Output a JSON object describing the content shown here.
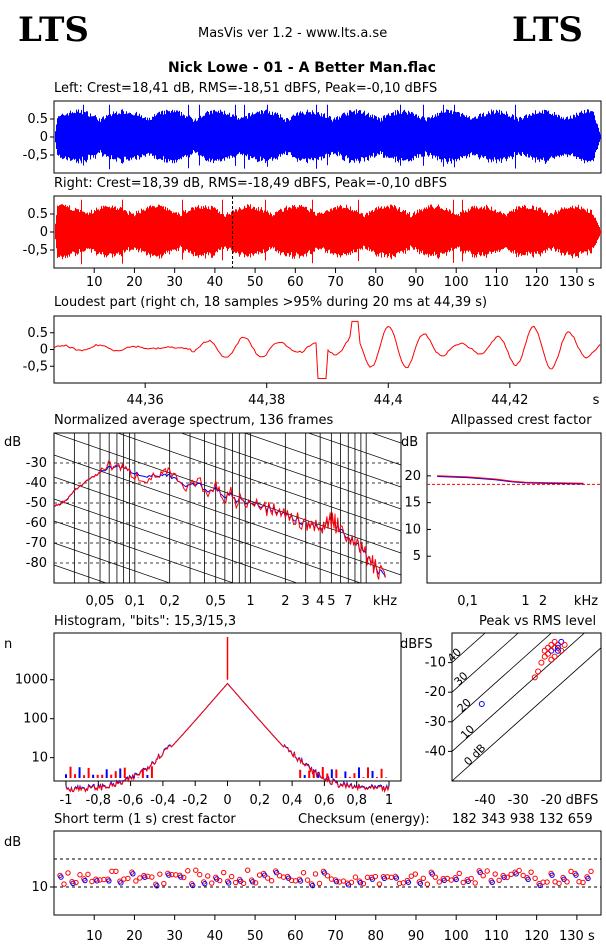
{
  "header": {
    "logo_left": "LTS",
    "logo_right": "LTS",
    "app_title": "MasVis ver 1.2 - www.lts.a.se",
    "file_title": "Nick Lowe - 01 - A Better Man.flac"
  },
  "colors": {
    "left": "#0000ff",
    "right": "#ff0000"
  },
  "chart_data": [
    {
      "id": "left",
      "type": "line",
      "title": "Left: Crest=18,41 dB, RMS=-18,51 dBFS, Peak=-0,10 dBFS",
      "yticks": [
        "0.5",
        "0",
        "-0,5"
      ],
      "ylim": [
        -1,
        1
      ],
      "xlim": [
        0,
        136
      ],
      "color": "#0000ff"
    },
    {
      "id": "right",
      "type": "line",
      "title": "Right: Crest=18,39 dB, RMS=-18,49 dBFS, Peak=-0,10 dBFS",
      "yticks": [
        "0.5",
        "0",
        "-0,5"
      ],
      "ylim": [
        -1,
        1
      ],
      "xlim": [
        0,
        136
      ],
      "xticks": [
        "10",
        "20",
        "30",
        "40",
        "50",
        "60",
        "70",
        "80",
        "90",
        "100",
        "110",
        "120",
        "130 s"
      ],
      "marker_x": 44.39,
      "color": "#ff0000"
    },
    {
      "id": "loudest",
      "type": "line",
      "title": "Loudest part (right ch, 18 samples >95% during 20 ms at 44,39 s)",
      "yticks": [
        "0.5",
        "0",
        "-0,5"
      ],
      "xticks": [
        "44,36",
        "44,38",
        "44,4",
        "44,42",
        "s"
      ],
      "xlim": [
        44.345,
        44.435
      ],
      "ylim": [
        -1,
        1
      ],
      "color": "#ff0000"
    },
    {
      "id": "spectrum",
      "type": "line",
      "title": "Normalized average spectrum, 136 frames",
      "ylabel": "dB",
      "yticks": [
        "-30",
        "-40",
        "-50",
        "-60",
        "-70",
        "-80"
      ],
      "xticks": [
        "0,05",
        "0,1",
        "0,2",
        "0,5",
        "1",
        "2",
        "3",
        "4",
        "5",
        "7",
        "kHz"
      ],
      "ylim": [
        -90,
        -15
      ],
      "points": [
        [
          0.02,
          -52
        ],
        [
          0.025,
          -49
        ],
        [
          0.03,
          -44
        ],
        [
          0.04,
          -38
        ],
        [
          0.05,
          -35
        ],
        [
          0.07,
          -32
        ],
        [
          0.1,
          -34
        ],
        [
          0.15,
          -36
        ],
        [
          0.2,
          -38
        ],
        [
          0.3,
          -41
        ],
        [
          0.5,
          -44
        ],
        [
          0.7,
          -47
        ],
        [
          1,
          -50
        ],
        [
          1.5,
          -53
        ],
        [
          2,
          -56
        ],
        [
          3,
          -60
        ],
        [
          4,
          -63
        ],
        [
          5,
          -58
        ],
        [
          6,
          -64
        ],
        [
          8,
          -70
        ],
        [
          10,
          -76
        ],
        [
          12,
          -82
        ],
        [
          15,
          -88
        ]
      ]
    },
    {
      "id": "crest_allpass",
      "type": "line",
      "title": "Allpassed crest factor",
      "ylabel": "dB",
      "yticks": [
        "20",
        "15",
        "10",
        "5"
      ],
      "xticks": [
        "0,1",
        "1",
        "2",
        "kHz"
      ],
      "ylim": [
        0,
        28
      ],
      "reference_db": 18.4,
      "points": [
        [
          0.03,
          19.9
        ],
        [
          0.1,
          19.7
        ],
        [
          0.3,
          19.3
        ],
        [
          0.6,
          18.9
        ],
        [
          1,
          18.7
        ],
        [
          3,
          18.6
        ],
        [
          10,
          18.5
        ]
      ]
    },
    {
      "id": "histogram",
      "type": "line",
      "title": "Histogram, \"bits\": 15,3/15,3",
      "ylabel": "n",
      "yticks": [
        "1000",
        "100",
        "10"
      ],
      "xticks": [
        "-1",
        "-0,8",
        "-0,6",
        "-0,4",
        "-0,2",
        "0",
        "0,2",
        "0,4",
        "0,6",
        "0,8",
        "1"
      ],
      "peak_count": 1000
    },
    {
      "id": "peak_vs_rms",
      "type": "scatter",
      "title": "Peak vs RMS level",
      "ylabel": "dBFS",
      "xlabel": "dBFS",
      "yticks": [
        "-10",
        "-20",
        "-30",
        "-40"
      ],
      "xticks": [
        "-40",
        "-30",
        "-20"
      ],
      "diagonal_labels": [
        "40",
        "30",
        "20",
        "10",
        "0 dB"
      ],
      "points": [
        [
          -20,
          -6
        ],
        [
          -19,
          -5
        ],
        [
          -18,
          -4
        ],
        [
          -21,
          -7
        ],
        [
          -17,
          -3
        ],
        [
          -22,
          -8
        ],
        [
          -19,
          -3
        ],
        [
          -20,
          -4
        ],
        [
          -18,
          -6
        ],
        [
          -23,
          -10
        ],
        [
          -24,
          -13
        ],
        [
          -25,
          -15
        ],
        [
          -41,
          -24
        ],
        [
          -20,
          -9
        ],
        [
          -19,
          -8
        ],
        [
          -21,
          -5
        ],
        [
          -18,
          -5
        ],
        [
          -17,
          -6
        ],
        [
          -22,
          -6
        ],
        [
          -16,
          -4
        ]
      ]
    },
    {
      "id": "short_term_crest",
      "type": "scatter",
      "title": "Short term (1 s) crest factor",
      "ylabel": "dB",
      "ytick": "10",
      "xticks": [
        "10",
        "20",
        "30",
        "40",
        "50",
        "60",
        "70",
        "80",
        "90",
        "100",
        "110",
        "120",
        "130 s"
      ],
      "checksum_label": "Checksum (energy):",
      "checksum_value": "182 343 938 132 659"
    }
  ]
}
